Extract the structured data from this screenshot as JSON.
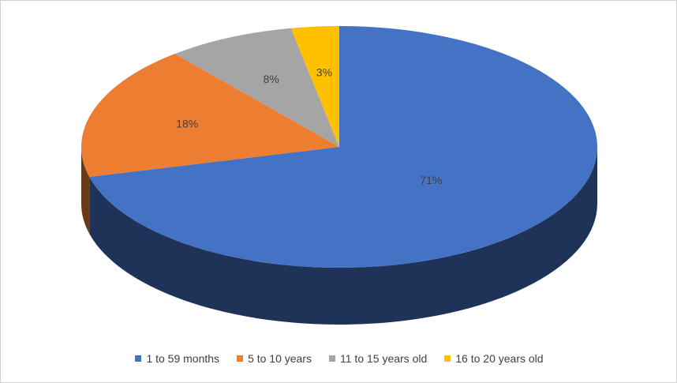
{
  "chart_data": {
    "type": "pie",
    "categories": [
      "1 to 59 months",
      "5 to 10 years",
      "11 to 15 years old",
      "16 to 20 years old"
    ],
    "values": [
      71,
      18,
      8,
      3
    ],
    "data_labels": [
      "71%",
      "18%",
      "8%",
      "3%"
    ],
    "colors": [
      "#4472C4",
      "#ED7D31",
      "#A5A5A5",
      "#FFC000"
    ],
    "title": "",
    "legend_position": "bottom",
    "style": "3d"
  }
}
